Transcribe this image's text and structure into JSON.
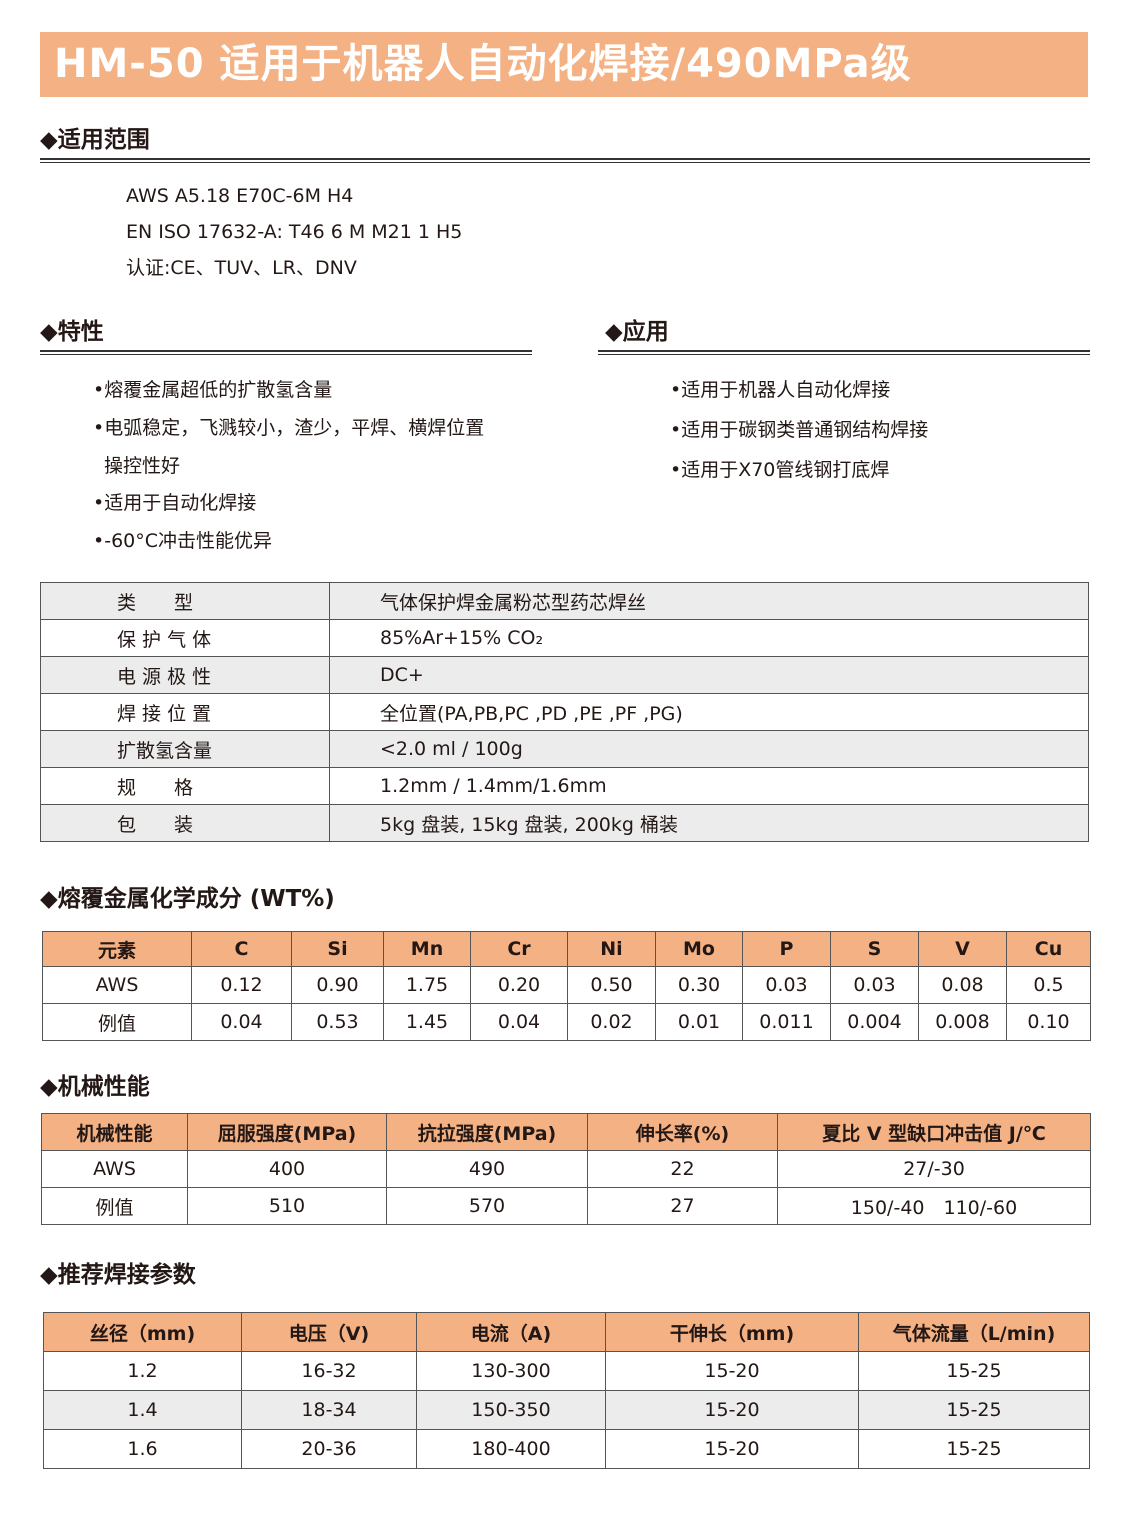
{
  "title": "HM-50 适用于机器人自动化焊接/490MPa级",
  "scope": {
    "heading": "◆适用范围",
    "lines": [
      "AWS A5.18 E70C-6M H4",
      "EN ISO 17632-A: T46 6 M M21 1 H5",
      "认证:CE、TUV、LR、DNV"
    ]
  },
  "features": {
    "heading": "◆特性",
    "items": [
      "•熔覆金属超低的扩散氢含量",
      "•电弧稳定，飞溅较小，渣少，平焊、横焊位置",
      "操控性好",
      "•适用于自动化焊接",
      "•-60°C冲击性能优异"
    ]
  },
  "applications": {
    "heading": "◆应用",
    "items": [
      "•适用于机器人自动化焊接",
      "•适用于碳钢类普通钢结构焊接",
      "•适用于X70管线钢打底焊"
    ]
  },
  "properties": [
    {
      "k": "类　　型",
      "v": "气体保护焊金属粉芯型药芯焊丝"
    },
    {
      "k": "保 护 气 体",
      "v": "85%Ar+15% CO₂"
    },
    {
      "k": "电 源 极 性",
      "v": "DC+"
    },
    {
      "k": "焊 接 位 置",
      "v": "全位置(PA,PB,PC ,PD ,PE ,PF ,PG)"
    },
    {
      "k": "扩散氢含量",
      "v": "<2.0 ml / 100g"
    },
    {
      "k": "规　　格",
      "v": "1.2mm / 1.4mm/1.6mm"
    },
    {
      "k": "包　　装",
      "v": "5kg 盘装, 15kg 盘装, 200kg 桶装"
    }
  ],
  "chemistry": {
    "heading": "◆熔覆金属化学成分 (WT%)",
    "headers": [
      "元素",
      "C",
      "Si",
      "Mn",
      "Cr",
      "Ni",
      "Mo",
      "P",
      "S",
      "V",
      "Cu"
    ],
    "rows": [
      [
        "AWS",
        "0.12",
        "0.90",
        "1.75",
        "0.20",
        "0.50",
        "0.30",
        "0.03",
        "0.03",
        "0.08",
        "0.5"
      ],
      [
        "例值",
        "0.04",
        "0.53",
        "1.45",
        "0.04",
        "0.02",
        "0.01",
        "0.011",
        "0.004",
        "0.008",
        "0.10"
      ]
    ]
  },
  "mechanical": {
    "heading": "◆机械性能",
    "headers": [
      "机械性能",
      "屈服强度(MPa)",
      "抗拉强度(MPa)",
      "伸长率(%)",
      "夏比 V 型缺口冲击值 J/℃"
    ],
    "rows": [
      [
        "AWS",
        "400",
        "490",
        "22",
        "27/-30"
      ],
      [
        "例值",
        "510",
        "570",
        "27",
        "150/-40　110/-60"
      ]
    ]
  },
  "params": {
    "heading": "◆推荐焊接参数",
    "headers": [
      "丝径（mm)",
      "电压（V)",
      "电流（A)",
      "干伸长（mm)",
      "气体流量（L/min)"
    ],
    "rows": [
      [
        "1.2",
        "16-32",
        "130-300",
        "15-20",
        "15-25"
      ],
      [
        "1.4",
        "18-34",
        "150-350",
        "15-20",
        "15-25"
      ],
      [
        "1.6",
        "20-36",
        "180-400",
        "15-20",
        "15-25"
      ]
    ]
  },
  "colors": {
    "accent": "#f4b183",
    "row_gray": "#ececec"
  }
}
